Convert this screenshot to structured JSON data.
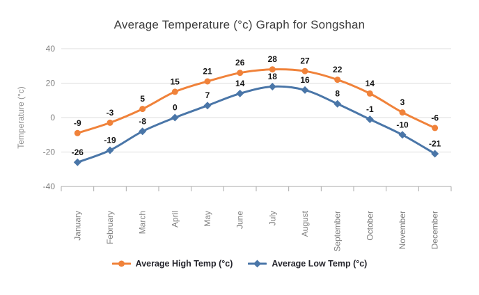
{
  "chart_data": {
    "type": "line",
    "title": "Average Temperature (°c) Graph for Songshan",
    "categories": [
      "January",
      "February",
      "March",
      "April",
      "May",
      "June",
      "July",
      "August",
      "September",
      "October",
      "November",
      "December"
    ],
    "series": [
      {
        "name": "Average High Temp (°c)",
        "marker": "circle",
        "color": "#F0823A",
        "values": [
          -9,
          -3,
          5,
          15,
          21,
          26,
          28,
          27,
          22,
          14,
          3,
          -6
        ]
      },
      {
        "name": "Average Low Temp (°c)",
        "marker": "diamond",
        "color": "#4A76A8",
        "values": [
          -26,
          -19,
          -8,
          0,
          7,
          14,
          18,
          16,
          8,
          -1,
          -10,
          -21
        ]
      }
    ],
    "xlabel": "",
    "ylabel": "Temperature (°c)",
    "yticks": [
      40,
      20,
      0,
      -20,
      -40
    ],
    "ylim": [
      -40,
      40
    ],
    "grid": true,
    "legend_position": "bottom",
    "data_labels": true
  },
  "colors": {
    "background": "#ffffff",
    "grid": "#dcdcdc",
    "axis": "#a9a9a9",
    "tick_text": "#7f7f7f",
    "axis_title_text": "#8f8f8f",
    "chart_title_text": "#3c3c3c",
    "data_label_text": "#141414",
    "legend_text": "#25252c"
  }
}
